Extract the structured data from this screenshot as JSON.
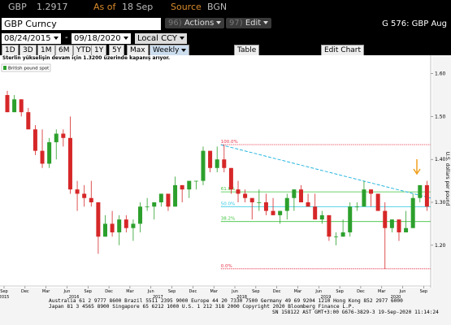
{
  "header": {
    "ticker": "GBP",
    "price": "1.2917",
    "as_of_label": "As of",
    "as_of": "18 Sep",
    "source_label": "Source",
    "source": "BGN"
  },
  "toolbar": {
    "security": "GBP Curncy",
    "actions_num": "96)",
    "actions": "Actions",
    "edit_num": "97)",
    "edit": "Edit",
    "page_title": "G 576: GBP Aug"
  },
  "range": {
    "start": "08/24/2015",
    "separator": "-",
    "end": "09/18/2020",
    "currency": "Local CCY"
  },
  "periods": [
    "1D",
    "3D",
    "1M",
    "6M",
    "YTD",
    "1Y",
    "5Y",
    "Max"
  ],
  "frequency": "Weekly",
  "table_button": "Table",
  "edit_chart_button": "Edit Chart",
  "footer": [
    "Australia 61 2 9777 8600 Brazil 5511 2395 9000 Europe 44 20 7330 7500 Germany 49 69 9204 1210 Hong Kong 852 2977 6000",
    "Japan 81 3 4565 8900       Singapore 65 6212 1000       U.S. 1 212 318 2000    Copyright 2020 Bloomberg Finance L.P.",
    "SN 158122 AST  GMT+3:00 G676-3829-3 19-Sep-2020 11:14:24"
  ],
  "chart_data": {
    "type": "candlestick",
    "subtitle": "Sterlin yükselişin devam için 1.3200 üzerinde kapanış arıyor.",
    "legend": "British pound spot",
    "y_label": "U.S. dollars per pound",
    "up_color": "#2ca02c",
    "down_color": "#d62728",
    "x": [
      "2015-09",
      "2015-10",
      "2015-11",
      "2015-12",
      "2016-01",
      "2016-02",
      "2016-03",
      "2016-04",
      "2016-05",
      "2016-06",
      "2016-07",
      "2016-08",
      "2016-09",
      "2016-10",
      "2016-11",
      "2016-12",
      "2017-01",
      "2017-02",
      "2017-03",
      "2017-04",
      "2017-05",
      "2017-06",
      "2017-07",
      "2017-08",
      "2017-09",
      "2017-10",
      "2017-11",
      "2017-12",
      "2018-01",
      "2018-02",
      "2018-03",
      "2018-04",
      "2018-05",
      "2018-06",
      "2018-07",
      "2018-08",
      "2018-09",
      "2018-10",
      "2018-11",
      "2018-12",
      "2019-01",
      "2019-02",
      "2019-03",
      "2019-04",
      "2019-05",
      "2019-06",
      "2019-07",
      "2019-08",
      "2019-09",
      "2019-10",
      "2019-11",
      "2019-12",
      "2020-01",
      "2020-02",
      "2020-03",
      "2020-04",
      "2020-05",
      "2020-06",
      "2020-07",
      "2020-08",
      "2020-09"
    ],
    "open": [
      1.55,
      1.51,
      1.54,
      1.51,
      1.47,
      1.42,
      1.39,
      1.44,
      1.46,
      1.45,
      1.33,
      1.32,
      1.31,
      1.3,
      1.22,
      1.25,
      1.23,
      1.26,
      1.24,
      1.25,
      1.29,
      1.29,
      1.3,
      1.32,
      1.29,
      1.34,
      1.33,
      1.35,
      1.35,
      1.42,
      1.38,
      1.4,
      1.38,
      1.33,
      1.32,
      1.31,
      1.3,
      1.3,
      1.28,
      1.27,
      1.28,
      1.31,
      1.33,
      1.3,
      1.29,
      1.26,
      1.27,
      1.22,
      1.22,
      1.23,
      1.29,
      1.29,
      1.33,
      1.32,
      1.28,
      1.24,
      1.26,
      1.23,
      1.24,
      1.31,
      1.34
    ],
    "high": [
      1.56,
      1.55,
      1.54,
      1.52,
      1.48,
      1.47,
      1.45,
      1.47,
      1.47,
      1.5,
      1.35,
      1.34,
      1.35,
      1.3,
      1.27,
      1.28,
      1.27,
      1.27,
      1.26,
      1.3,
      1.31,
      1.3,
      1.32,
      1.32,
      1.36,
      1.34,
      1.35,
      1.35,
      1.43,
      1.42,
      1.43,
      1.434,
      1.38,
      1.35,
      1.33,
      1.31,
      1.33,
      1.32,
      1.31,
      1.28,
      1.32,
      1.33,
      1.34,
      1.32,
      1.32,
      1.28,
      1.27,
      1.23,
      1.26,
      1.3,
      1.3,
      1.35,
      1.33,
      1.32,
      1.3,
      1.26,
      1.26,
      1.28,
      1.32,
      1.34,
      1.35
    ],
    "low": [
      1.51,
      1.51,
      1.5,
      1.47,
      1.41,
      1.38,
      1.38,
      1.4,
      1.43,
      1.32,
      1.28,
      1.29,
      1.29,
      1.18,
      1.22,
      1.22,
      1.2,
      1.23,
      1.21,
      1.23,
      1.28,
      1.26,
      1.29,
      1.28,
      1.29,
      1.3,
      1.31,
      1.33,
      1.34,
      1.37,
      1.37,
      1.37,
      1.32,
      1.3,
      1.3,
      1.26,
      1.28,
      1.27,
      1.27,
      1.25,
      1.26,
      1.28,
      1.3,
      1.29,
      1.26,
      1.25,
      1.21,
      1.2,
      1.22,
      1.22,
      1.28,
      1.29,
      1.29,
      1.28,
      1.145,
      1.23,
      1.21,
      1.23,
      1.24,
      1.3,
      1.28
    ],
    "close": [
      1.51,
      1.54,
      1.51,
      1.47,
      1.42,
      1.39,
      1.44,
      1.46,
      1.45,
      1.33,
      1.32,
      1.31,
      1.3,
      1.22,
      1.25,
      1.23,
      1.26,
      1.24,
      1.25,
      1.29,
      1.29,
      1.3,
      1.32,
      1.29,
      1.34,
      1.33,
      1.35,
      1.35,
      1.42,
      1.38,
      1.4,
      1.38,
      1.33,
      1.32,
      1.31,
      1.3,
      1.3,
      1.28,
      1.27,
      1.28,
      1.31,
      1.33,
      1.3,
      1.29,
      1.26,
      1.27,
      1.22,
      1.22,
      1.23,
      1.29,
      1.29,
      1.33,
      1.32,
      1.28,
      1.24,
      1.26,
      1.23,
      1.24,
      1.31,
      1.34,
      1.29
    ],
    "xlim": [
      "2015-09",
      "2020-10"
    ],
    "xticks": [
      {
        "value": "2015-09",
        "label": "Sep"
      },
      {
        "value": "2015-12",
        "label": "Dec"
      },
      {
        "value": "2016-03",
        "label": "Mar"
      },
      {
        "value": "2016-06",
        "label": "Jun"
      },
      {
        "value": "2016-09",
        "label": "Sep"
      },
      {
        "value": "2016-12",
        "label": "Dec"
      },
      {
        "value": "2017-03",
        "label": "Mar"
      },
      {
        "value": "2017-06",
        "label": "Jun"
      },
      {
        "value": "2017-09",
        "label": "Sep"
      },
      {
        "value": "2017-12",
        "label": "Dec"
      },
      {
        "value": "2018-03",
        "label": "Mar"
      },
      {
        "value": "2018-06",
        "label": "Jun"
      },
      {
        "value": "2018-09",
        "label": "Sep"
      },
      {
        "value": "2018-12",
        "label": "Dec"
      },
      {
        "value": "2019-03",
        "label": "Mar"
      },
      {
        "value": "2019-06",
        "label": "Jun"
      },
      {
        "value": "2019-09",
        "label": "Sep"
      },
      {
        "value": "2019-12",
        "label": "Dec"
      },
      {
        "value": "2020-03",
        "label": "Mar"
      },
      {
        "value": "2020-06",
        "label": "Jun"
      },
      {
        "value": "2020-09",
        "label": "Sep"
      }
    ],
    "year_ticks": [
      {
        "value": "2015-09",
        "label": "2015"
      },
      {
        "value": "2016-07",
        "label": "2016"
      },
      {
        "value": "2017-07",
        "label": "2017"
      },
      {
        "value": "2018-07",
        "label": "2018"
      },
      {
        "value": "2019-07",
        "label": "2019"
      },
      {
        "value": "2020-05",
        "label": "2020"
      }
    ],
    "ylim": [
      1.105,
      1.62
    ],
    "yticks": [
      {
        "value": 1.2,
        "label": "1.20"
      },
      {
        "value": 1.3,
        "label": "1.30"
      },
      {
        "value": 1.4,
        "label": "1.40"
      },
      {
        "value": 1.5,
        "label": "1.50"
      },
      {
        "value": 1.6,
        "label": "1.60"
      }
    ],
    "fib_start": "2018-04",
    "fib": [
      {
        "label": "100.0%",
        "value": 1.4345,
        "color": "#e8334a"
      },
      {
        "label": "61.8%",
        "value": 1.3244,
        "color": "#3ec43e"
      },
      {
        "label": "50.0%",
        "value": 1.2898,
        "color": "#29c6e0"
      },
      {
        "label": "38.2%",
        "value": 1.2552,
        "color": "#3ec43e"
      },
      {
        "label": "0.0%",
        "value": 1.1451,
        "color": "#e8334a"
      }
    ],
    "trendline": {
      "x": [
        "2018-04",
        "2020-10"
      ],
      "y": [
        1.434,
        1.31
      ],
      "color": "#29b6e0"
    }
  }
}
